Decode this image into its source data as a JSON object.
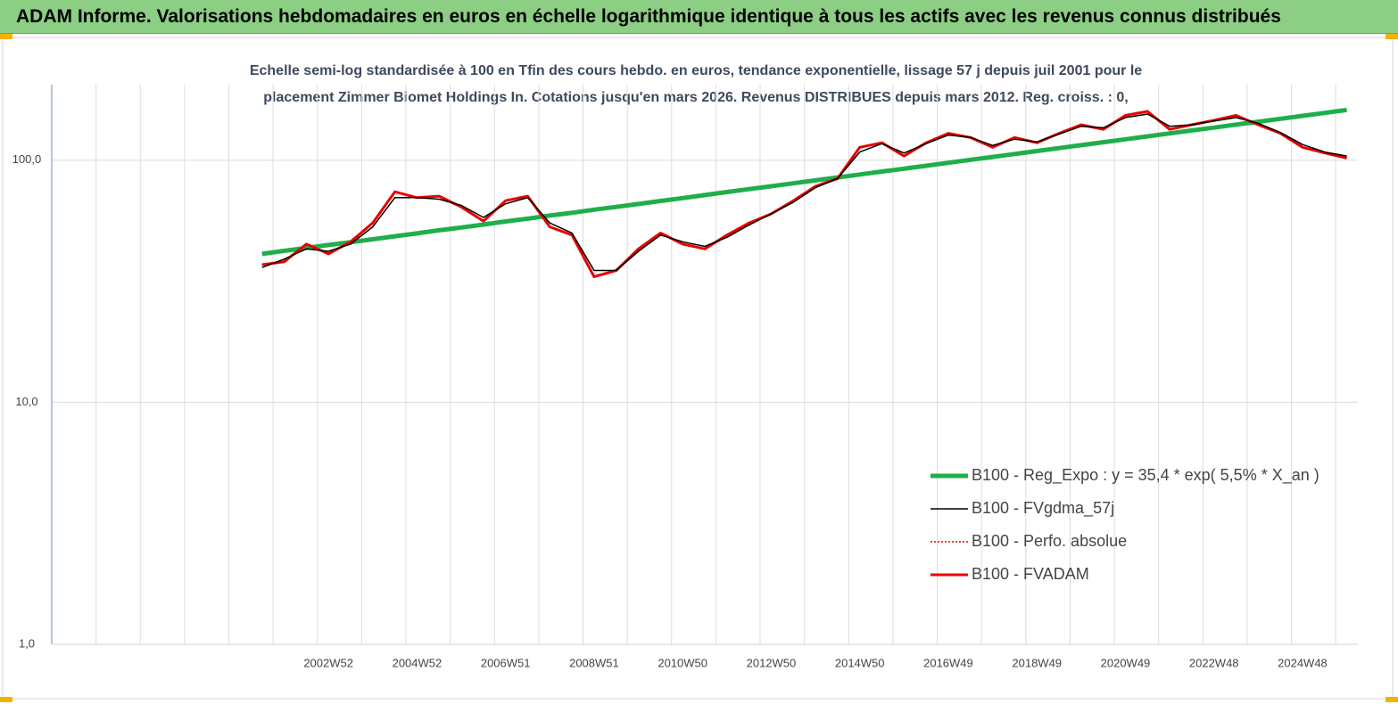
{
  "header": {
    "title": "ADAM Informe. Valorisations hebdomadaires en euros en échelle logarithmique identique à tous les actifs avec les revenus connus distribués"
  },
  "chart_data": {
    "type": "line",
    "subtitle": [
      "Echelle semi-log standardisée à 100 en Tfin des cours hebdo. en euros, tendance exponentielle, lissage 57 j depuis juil 2001 pour le",
      "placement Zimmer Biomet Holdings In. Cotations jusqu'en mars 2026. Revenus DISTRIBUES depuis mars 2012. Reg. croiss. : 0,"
    ],
    "categories": [
      null,
      null,
      null,
      null,
      null,
      null,
      null,
      null,
      null,
      null,
      null,
      null,
      "2002W52",
      null,
      null,
      null,
      "2004W52",
      null,
      null,
      null,
      "2006W51",
      null,
      null,
      null,
      "2008W51",
      null,
      null,
      null,
      "2010W50",
      null,
      null,
      null,
      "2012W50",
      null,
      null,
      null,
      "2014W50",
      null,
      null,
      null,
      "2016W49",
      null,
      null,
      null,
      "2018W49",
      null,
      null,
      null,
      "2020W49",
      null,
      null,
      null,
      "2022W48",
      null,
      null,
      null,
      "2024W48",
      null,
      null
    ],
    "log_scale": true,
    "grid": true,
    "legend": "lower right",
    "ylim": [
      1,
      205
    ],
    "yticks": [
      {
        "value": 1,
        "label": "1,0"
      },
      {
        "value": 10,
        "label": "10,0"
      },
      {
        "value": 100,
        "label": "100,0"
      }
    ],
    "series": [
      {
        "name": "B100 - Reg_Expo : y = 35,4 *  exp( 5,5% *  X_an )",
        "color": "#1fae4b",
        "style": "solid",
        "values": [
          null,
          null,
          null,
          null,
          null,
          null,
          null,
          null,
          null,
          41,
          42.2,
          43.4,
          44.6,
          45.8,
          47.1,
          48.5,
          49.8,
          51.3,
          52.7,
          54.2,
          55.8,
          57.3,
          59.0,
          60.6,
          62.4,
          64.1,
          65.9,
          67.8,
          69.7,
          71.7,
          73.8,
          75.9,
          78.0,
          80.2,
          82.5,
          84.8,
          87.2,
          89.7,
          92.2,
          94.8,
          97.5,
          100.3,
          103.1,
          106.0,
          109.0,
          112.1,
          115.3,
          118.6,
          121.9,
          125.4,
          128.9,
          132.6,
          136.3,
          140.2,
          144.1,
          148.2,
          152.4,
          156.7,
          161.1
        ]
      },
      {
        "name": "B100 - FVgdma_57j",
        "color": "#000000",
        "style": "solid",
        "values": [
          null,
          null,
          null,
          null,
          null,
          null,
          null,
          null,
          null,
          36,
          39,
          43,
          42,
          45,
          53,
          70,
          70,
          69,
          65,
          58,
          66,
          70,
          55,
          50,
          35,
          35,
          42,
          49,
          46,
          44,
          48,
          54,
          60,
          67,
          77,
          84,
          108,
          117,
          107,
          117,
          127,
          124,
          115,
          122,
          119,
          128,
          138,
          136,
          150,
          155,
          138,
          140,
          145,
          150,
          142,
          130,
          116,
          108,
          104
        ]
      },
      {
        "name": "B100 - Perfo. absolue",
        "color": "#e00000",
        "style": "dotted",
        "values": [
          null,
          null,
          null,
          null,
          null,
          null,
          null,
          null,
          null,
          37,
          38,
          45,
          41,
          46,
          55,
          74,
          70,
          71,
          64,
          56,
          68,
          71,
          53,
          49,
          33,
          35,
          43,
          50,
          45,
          43,
          49,
          55,
          60,
          68,
          78,
          84,
          113,
          118,
          104,
          118,
          129,
          124,
          113,
          124,
          118,
          129,
          140,
          134,
          153,
          159,
          134,
          140,
          146,
          153,
          140,
          129,
          113,
          107,
          102
        ]
      },
      {
        "name": "B100 - FVADAM",
        "color": "#ee0000",
        "style": "thick",
        "values": [
          null,
          null,
          null,
          null,
          null,
          null,
          null,
          null,
          null,
          37,
          38,
          45,
          41,
          46,
          55,
          74,
          70,
          71,
          64,
          56,
          68,
          71,
          53,
          49,
          33,
          35,
          43,
          50,
          45,
          43,
          49,
          55,
          60,
          68,
          78,
          84,
          113,
          118,
          104,
          118,
          129,
          124,
          113,
          124,
          118,
          129,
          140,
          134,
          153,
          159,
          134,
          140,
          146,
          153,
          140,
          129,
          113,
          107,
          102
        ]
      }
    ]
  }
}
